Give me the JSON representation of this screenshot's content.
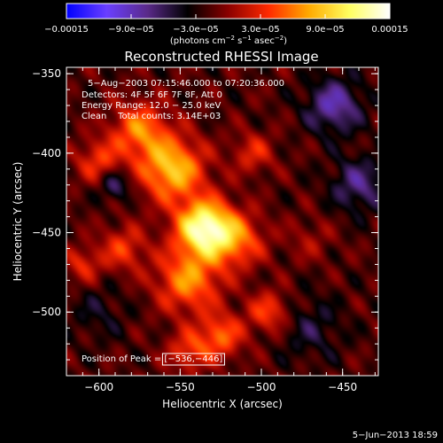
{
  "chart_data": {
    "type": "heatmap",
    "title": "Reconstructed RHESSI Image",
    "xlabel": "Heliocentric X (arcsec)",
    "ylabel": "Heliocentric Y (arcsec)",
    "xlim": [
      -620,
      -428
    ],
    "ylim": [
      -540,
      -346
    ],
    "x_ticks": [
      -600,
      -550,
      -500,
      -450
    ],
    "x_tick_labels": [
      "−600",
      "−550",
      "−500",
      "−450"
    ],
    "y_ticks": [
      -350,
      -400,
      -450,
      -500
    ],
    "y_tick_labels": [
      "−350",
      "−400",
      "−450",
      "−500"
    ],
    "colorbar": {
      "range": [
        -0.00015,
        0.00015
      ],
      "ticks": [
        -0.00015,
        -9e-05,
        -3e-05,
        3e-05,
        9e-05,
        0.00015
      ],
      "tick_labels": [
        "−0.00015",
        "−9.0e−05",
        "−3.0e−05",
        "3.0e−05",
        "9.0e−05",
        "0.00015"
      ],
      "unit_label": "(photons cm",
      "unit_sup1": "−2",
      "unit_mid": " s",
      "unit_sup2": "−1",
      "unit_mid2": " asec",
      "unit_sup3": "−2",
      "unit_end": ")",
      "colormap": [
        "#0000ff",
        "#6a3fff",
        "#5a2a8a",
        "#000000",
        "#8a0000",
        "#ff2a00",
        "#ffaa00",
        "#ffff60",
        "#ffffff"
      ]
    },
    "annotations": {
      "time_range": "5−Aug−2003 07:15:46.000 to 07:20:36.000",
      "detectors": "Detectors: 4F 5F 6F 7F 8F, Att 0",
      "energy": "Energy Range: 12.0 − 25.0 keV",
      "clean_total": "Clean    Total counts: 3.14E+03",
      "peak_prefix": "Position of Peak = ",
      "peak_value": "[−536,−446]"
    },
    "peak": [
      -536,
      -446
    ],
    "sources": [
      {
        "x": -535,
        "y": -447,
        "v": 1.0,
        "s": 12
      },
      {
        "x": -555,
        "y": -410,
        "v": 0.7,
        "s": 14
      },
      {
        "x": -575,
        "y": -385,
        "v": 0.5,
        "s": 12
      },
      {
        "x": -545,
        "y": -480,
        "v": 0.55,
        "s": 14
      },
      {
        "x": -515,
        "y": -455,
        "v": 0.45,
        "s": 12
      },
      {
        "x": -600,
        "y": -405,
        "v": 0.35,
        "s": 10
      },
      {
        "x": -585,
        "y": -460,
        "v": 0.35,
        "s": 10
      },
      {
        "x": -525,
        "y": -515,
        "v": 0.45,
        "s": 10
      },
      {
        "x": -545,
        "y": -525,
        "v": 0.35,
        "s": 9
      },
      {
        "x": -495,
        "y": -500,
        "v": 0.4,
        "s": 9
      },
      {
        "x": -505,
        "y": -400,
        "v": 0.3,
        "s": 9
      },
      {
        "x": -610,
        "y": -470,
        "v": 0.3,
        "s": 8
      },
      {
        "x": -470,
        "y": -455,
        "v": 0.15,
        "s": 10
      },
      {
        "x": -455,
        "y": -370,
        "v": -0.45,
        "s": 12
      },
      {
        "x": -440,
        "y": -420,
        "v": -0.35,
        "s": 12
      },
      {
        "x": -590,
        "y": -420,
        "v": -0.35,
        "s": 7
      },
      {
        "x": -470,
        "y": -510,
        "v": -0.2,
        "s": 14
      },
      {
        "x": -600,
        "y": -500,
        "v": -0.15,
        "s": 12
      }
    ]
  },
  "footer_date": "5−Jun−2013 18:59"
}
